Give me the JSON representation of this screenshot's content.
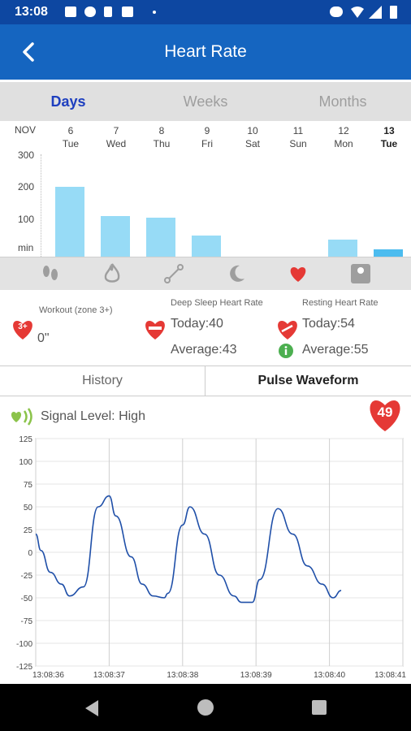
{
  "status_bar": {
    "time": "13:08"
  },
  "app_bar": {
    "title": "Heart Rate"
  },
  "tabs": [
    "Days",
    "Weeks",
    "Months"
  ],
  "month": "NOV",
  "days": [
    {
      "num": "6",
      "name": "Tue"
    },
    {
      "num": "7",
      "name": "Wed"
    },
    {
      "num": "8",
      "name": "Thu"
    },
    {
      "num": "9",
      "name": "Fri"
    },
    {
      "num": "10",
      "name": "Sat"
    },
    {
      "num": "11",
      "name": "Sun"
    },
    {
      "num": "12",
      "name": "Mon"
    },
    {
      "num": "13",
      "name": "Tue"
    }
  ],
  "y_labels": [
    "300",
    "200",
    "100",
    "min"
  ],
  "daily_bar_chart": {
    "type": "bar",
    "y_max": 300,
    "values": [
      205,
      118,
      115,
      62,
      0,
      0,
      50,
      22
    ],
    "selected_index": 7
  },
  "stats": {
    "workout_label": "Workout (zone 3+)",
    "workout_badge": "3+",
    "workout_value": "0\"",
    "deep_sleep_label": "Deep Sleep Heart Rate",
    "deep_today": "Today:40",
    "deep_avg": "Average:43",
    "resting_label": "Resting Heart Rate",
    "resting_today": "Today:54",
    "resting_avg": "Average:55"
  },
  "subtabs": [
    "History",
    "Pulse Waveform"
  ],
  "signal": {
    "text": "Signal Level: High",
    "bpm": "49"
  },
  "chart_data": {
    "type": "line",
    "title": "",
    "xlabel": "",
    "ylabel": "",
    "ylim": [
      -125,
      125
    ],
    "yticks": [
      125,
      100,
      75,
      50,
      25,
      0,
      -25,
      -50,
      -75,
      -100,
      -125
    ],
    "x_ticks": [
      "13:08:36",
      "13:08:37",
      "13:08:38",
      "13:08:39",
      "13:08:40",
      "13:08:41"
    ],
    "grid": true,
    "x": [
      0,
      0.07,
      0.2,
      0.35,
      0.46,
      0.65,
      0.85,
      1.0,
      1.09,
      1.3,
      1.45,
      1.6,
      1.75,
      1.8,
      2.0,
      2.1,
      2.3,
      2.5,
      2.7,
      2.8,
      2.95,
      3.05,
      3.3,
      3.5,
      3.7,
      3.9,
      4.05,
      4.16
    ],
    "series": [
      {
        "values": [
          20,
          2,
          -22,
          -35,
          -48,
          -38,
          50,
          62,
          40,
          -5,
          -35,
          -48,
          -50,
          -45,
          30,
          50,
          20,
          -25,
          -48,
          -55,
          -55,
          -30,
          48,
          20,
          -15,
          -35,
          -50,
          -42
        ]
      }
    ]
  }
}
